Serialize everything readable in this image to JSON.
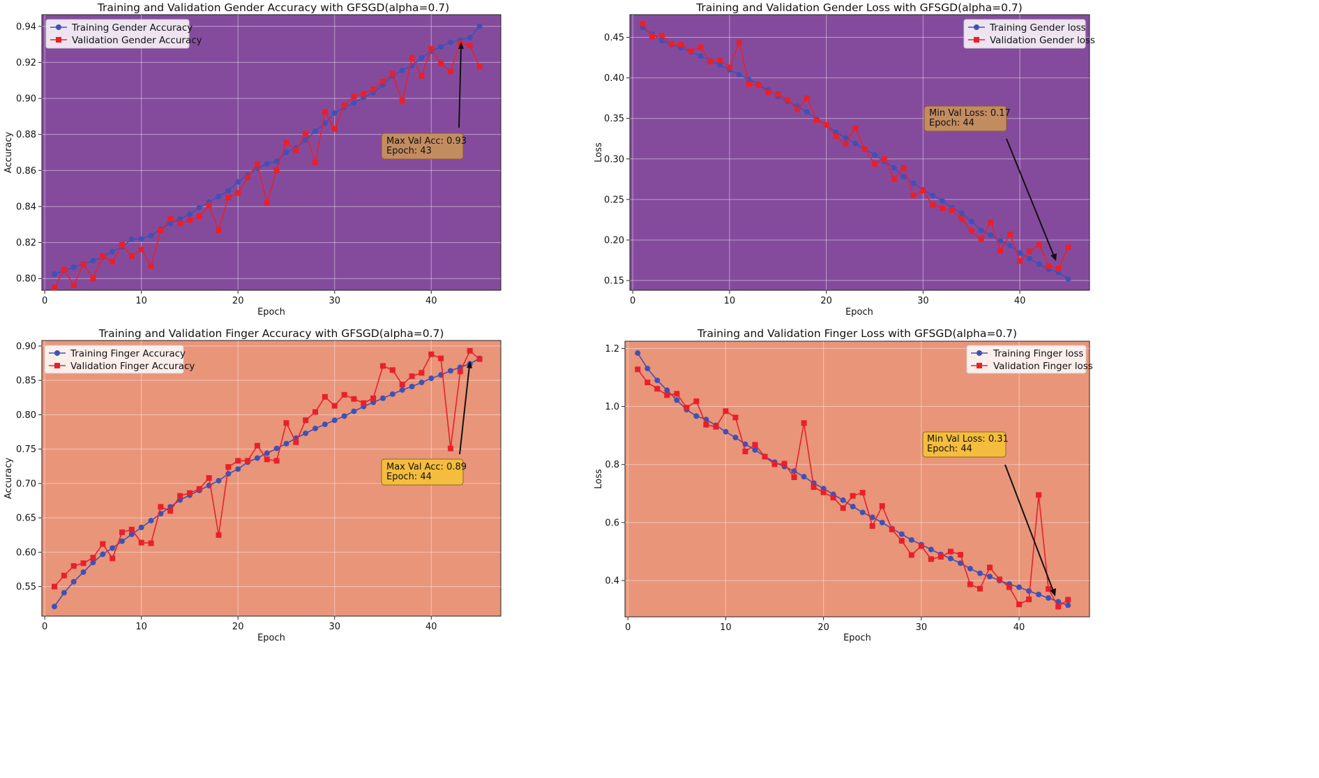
{
  "chart_data": [
    {
      "type": "line",
      "title": "Training and Validation Gender Accuracy with GFSGD(alpha=0.7)",
      "xlabel": "Epoch",
      "ylabel": "Accuracy",
      "xlim": [
        -0.3,
        47.2
      ],
      "ylim": [
        0.7935,
        0.9465
      ],
      "xticks": [
        0,
        10,
        20,
        30,
        40
      ],
      "yticks": [
        0.8,
        0.82,
        0.84,
        0.86,
        0.88,
        0.9,
        0.92,
        0.94
      ],
      "ytick_labels": [
        "0.80",
        "0.82",
        "0.84",
        "0.86",
        "0.88",
        "0.90",
        "0.92",
        "0.94"
      ],
      "grid": true,
      "background": "#844b9d",
      "legend_location": "upper-left",
      "x": [
        1,
        2,
        3,
        4,
        5,
        6,
        7,
        8,
        9,
        10,
        11,
        12,
        13,
        14,
        15,
        16,
        17,
        18,
        19,
        20,
        21,
        22,
        23,
        24,
        25,
        26,
        27,
        28,
        29,
        30,
        31,
        32,
        33,
        34,
        35,
        36,
        37,
        38,
        39,
        40,
        41,
        42,
        43,
        44,
        45
      ],
      "series": [
        {
          "name": "Training Gender Accuracy",
          "color": "#3f51b5",
          "marker": "circle",
          "values": [
            0.8025,
            0.8044,
            0.8063,
            0.8081,
            0.81,
            0.8119,
            0.815,
            0.8175,
            0.8218,
            0.822,
            0.8238,
            0.8275,
            0.8306,
            0.8331,
            0.8356,
            0.8394,
            0.8425,
            0.8456,
            0.8487,
            0.8537,
            0.8575,
            0.8612,
            0.8637,
            0.865,
            0.87,
            0.8725,
            0.8769,
            0.8818,
            0.8862,
            0.8919,
            0.895,
            0.8975,
            0.9006,
            0.9031,
            0.9075,
            0.9125,
            0.9156,
            0.9181,
            0.9225,
            0.9262,
            0.9287,
            0.9312,
            0.9325,
            0.9337,
            0.94
          ]
        },
        {
          "name": "Validation Gender Accuracy",
          "color": "#e8202a",
          "marker": "square",
          "values": [
            0.795,
            0.805,
            0.7962,
            0.8081,
            0.8,
            0.8125,
            0.8094,
            0.8187,
            0.8125,
            0.8162,
            0.8069,
            0.8268,
            0.8331,
            0.8306,
            0.8325,
            0.8345,
            0.8406,
            0.8268,
            0.845,
            0.8475,
            0.8562,
            0.8637,
            0.8419,
            0.86,
            0.8756,
            0.8712,
            0.8806,
            0.8644,
            0.8925,
            0.8831,
            0.8962,
            0.9012,
            0.9025,
            0.905,
            0.9094,
            0.9137,
            0.8987,
            0.9225,
            0.9125,
            0.9275,
            0.9194,
            0.915,
            0.9306,
            0.9294,
            0.9175
          ]
        }
      ],
      "annotation": {
        "lines": [
          "Max Val Acc: 0.93",
          "Epoch: 43"
        ],
        "box_color": "#c8915c"
      }
    },
    {
      "type": "line",
      "title": "Training and Validation Gender Loss with GFSGD(alpha=0.7)",
      "xlabel": "Epoch",
      "ylabel": "Loss",
      "xlim": [
        -0.3,
        47.2
      ],
      "ylim": [
        0.138,
        0.478
      ],
      "xticks": [
        0,
        10,
        20,
        30,
        40
      ],
      "yticks": [
        0.15,
        0.2,
        0.25,
        0.3,
        0.35,
        0.4,
        0.45
      ],
      "ytick_labels": [
        "0.15",
        "0.20",
        "0.25",
        "0.30",
        "0.35",
        "0.40",
        "0.45"
      ],
      "grid": true,
      "background": "#844b9d",
      "legend_location": "upper-right",
      "x": [
        1,
        2,
        3,
        4,
        5,
        6,
        7,
        8,
        9,
        10,
        11,
        12,
        13,
        14,
        15,
        16,
        17,
        18,
        19,
        20,
        21,
        22,
        23,
        24,
        25,
        26,
        27,
        28,
        29,
        30,
        31,
        32,
        33,
        34,
        35,
        36,
        37,
        38,
        39,
        40,
        41,
        42,
        43,
        44,
        45
      ],
      "series": [
        {
          "name": "Training Gender loss",
          "color": "#3f51b5",
          "marker": "circle",
          "values": [
            0.462,
            0.454,
            0.446,
            0.441,
            0.437,
            0.432,
            0.427,
            0.421,
            0.416,
            0.41,
            0.404,
            0.398,
            0.392,
            0.385,
            0.377,
            0.371,
            0.365,
            0.358,
            0.349,
            0.342,
            0.333,
            0.326,
            0.319,
            0.312,
            0.305,
            0.297,
            0.289,
            0.278,
            0.27,
            0.262,
            0.255,
            0.248,
            0.24,
            0.233,
            0.223,
            0.212,
            0.206,
            0.199,
            0.193,
            0.184,
            0.177,
            0.17,
            0.164,
            0.16,
            0.152
          ]
        },
        {
          "name": "Validation Gender loss",
          "color": "#e8202a",
          "marker": "square",
          "values": [
            0.467,
            0.451,
            0.452,
            0.442,
            0.441,
            0.433,
            0.438,
            0.42,
            0.422,
            0.413,
            0.444,
            0.392,
            0.391,
            0.382,
            0.38,
            0.373,
            0.361,
            0.375,
            0.348,
            0.342,
            0.328,
            0.319,
            0.338,
            0.312,
            0.294,
            0.3,
            0.275,
            0.289,
            0.255,
            0.261,
            0.243,
            0.239,
            0.237,
            0.226,
            0.211,
            0.201,
            0.222,
            0.187,
            0.207,
            0.174,
            0.186,
            0.194,
            0.168,
            0.165,
            0.191
          ]
        }
      ],
      "annotation": {
        "lines": [
          "Min Val Loss: 0.17",
          "Epoch: 44"
        ],
        "box_color": "#c8915c"
      }
    },
    {
      "type": "line",
      "title": "Training and Validation Finger Accuracy with GFSGD(alpha=0.7)",
      "xlabel": "Epoch",
      "ylabel": "Accuracy",
      "xlim": [
        -0.3,
        47.2
      ],
      "ylim": [
        0.507,
        0.908
      ],
      "xticks": [
        0,
        10,
        20,
        30,
        40
      ],
      "yticks": [
        0.55,
        0.6,
        0.65,
        0.7,
        0.75,
        0.8,
        0.85,
        0.9
      ],
      "ytick_labels": [
        "0.55",
        "0.60",
        "0.65",
        "0.70",
        "0.75",
        "0.80",
        "0.85",
        "0.90"
      ],
      "grid": true,
      "background": "#e9957a",
      "legend_location": "upper-left",
      "x": [
        1,
        2,
        3,
        4,
        5,
        6,
        7,
        8,
        9,
        10,
        11,
        12,
        13,
        14,
        15,
        16,
        17,
        18,
        19,
        20,
        21,
        22,
        23,
        24,
        25,
        26,
        27,
        28,
        29,
        30,
        31,
        32,
        33,
        34,
        35,
        36,
        37,
        38,
        39,
        40,
        41,
        42,
        43,
        44,
        45
      ],
      "series": [
        {
          "name": "Training Finger Accuracy",
          "color": "#3f51b5",
          "marker": "circle",
          "values": [
            0.521,
            0.541,
            0.557,
            0.571,
            0.585,
            0.597,
            0.606,
            0.616,
            0.626,
            0.636,
            0.646,
            0.656,
            0.666,
            0.676,
            0.683,
            0.69,
            0.697,
            0.704,
            0.714,
            0.721,
            0.731,
            0.737,
            0.744,
            0.751,
            0.758,
            0.766,
            0.773,
            0.78,
            0.786,
            0.792,
            0.798,
            0.805,
            0.812,
            0.818,
            0.824,
            0.83,
            0.836,
            0.841,
            0.847,
            0.853,
            0.858,
            0.864,
            0.869,
            0.874,
            0.882
          ]
        },
        {
          "name": "Validation Finger Accuracy",
          "color": "#e8202a",
          "marker": "square",
          "values": [
            0.55,
            0.566,
            0.58,
            0.584,
            0.592,
            0.612,
            0.591,
            0.629,
            0.633,
            0.614,
            0.613,
            0.666,
            0.66,
            0.682,
            0.686,
            0.692,
            0.708,
            0.625,
            0.724,
            0.733,
            0.733,
            0.755,
            0.735,
            0.733,
            0.788,
            0.76,
            0.792,
            0.804,
            0.826,
            0.813,
            0.829,
            0.823,
            0.817,
            0.824,
            0.871,
            0.865,
            0.844,
            0.856,
            0.861,
            0.888,
            0.882,
            0.751,
            0.863,
            0.893,
            0.881
          ]
        }
      ],
      "annotation": {
        "lines": [
          "Max Val Acc: 0.89",
          "Epoch: 44"
        ],
        "box_color": "#f5c037"
      }
    },
    {
      "type": "line",
      "title": "Training and Validation Finger Loss with GFSGD(alpha=0.7)",
      "xlabel": "Epoch",
      "ylabel": "Loss",
      "xlim": [
        -0.3,
        47.2
      ],
      "ylim": [
        0.275,
        1.225
      ],
      "xticks": [
        0,
        10,
        20,
        30,
        40
      ],
      "yticks": [
        0.4,
        0.6,
        0.8,
        1.0,
        1.2
      ],
      "ytick_labels": [
        "0.4",
        "0.6",
        "0.8",
        "1.0",
        "1.2"
      ],
      "grid": true,
      "background": "#e9957a",
      "legend_location": "upper-right",
      "x": [
        1,
        2,
        3,
        4,
        5,
        6,
        7,
        8,
        9,
        10,
        11,
        12,
        13,
        14,
        15,
        16,
        17,
        18,
        19,
        20,
        21,
        22,
        23,
        24,
        25,
        26,
        27,
        28,
        29,
        30,
        31,
        32,
        33,
        34,
        35,
        36,
        37,
        38,
        39,
        40,
        41,
        42,
        43,
        44,
        45
      ],
      "series": [
        {
          "name": "Training Finger loss",
          "color": "#3f51b5",
          "marker": "circle",
          "values": [
            1.184,
            1.131,
            1.09,
            1.056,
            1.022,
            0.989,
            0.967,
            0.955,
            0.935,
            0.913,
            0.893,
            0.87,
            0.85,
            0.828,
            0.808,
            0.793,
            0.777,
            0.758,
            0.736,
            0.717,
            0.697,
            0.677,
            0.655,
            0.635,
            0.618,
            0.6,
            0.579,
            0.56,
            0.54,
            0.524,
            0.507,
            0.49,
            0.476,
            0.46,
            0.441,
            0.425,
            0.414,
            0.4,
            0.388,
            0.377,
            0.364,
            0.352,
            0.34,
            0.327,
            0.315
          ]
        },
        {
          "name": "Validation Finger loss",
          "color": "#e8202a",
          "marker": "square",
          "values": [
            1.128,
            1.083,
            1.061,
            1.039,
            1.044,
            0.996,
            1.018,
            0.937,
            0.93,
            0.984,
            0.962,
            0.845,
            0.868,
            0.827,
            0.801,
            0.803,
            0.756,
            0.943,
            0.722,
            0.704,
            0.686,
            0.65,
            0.692,
            0.703,
            0.588,
            0.657,
            0.576,
            0.537,
            0.488,
            0.519,
            0.474,
            0.482,
            0.5,
            0.489,
            0.387,
            0.372,
            0.445,
            0.404,
            0.377,
            0.318,
            0.335,
            0.695,
            0.371,
            0.31,
            0.334
          ]
        }
      ],
      "annotation": {
        "lines": [
          "Min Val Loss: 0.31",
          "Epoch: 44"
        ],
        "box_color": "#f5c037"
      }
    }
  ]
}
